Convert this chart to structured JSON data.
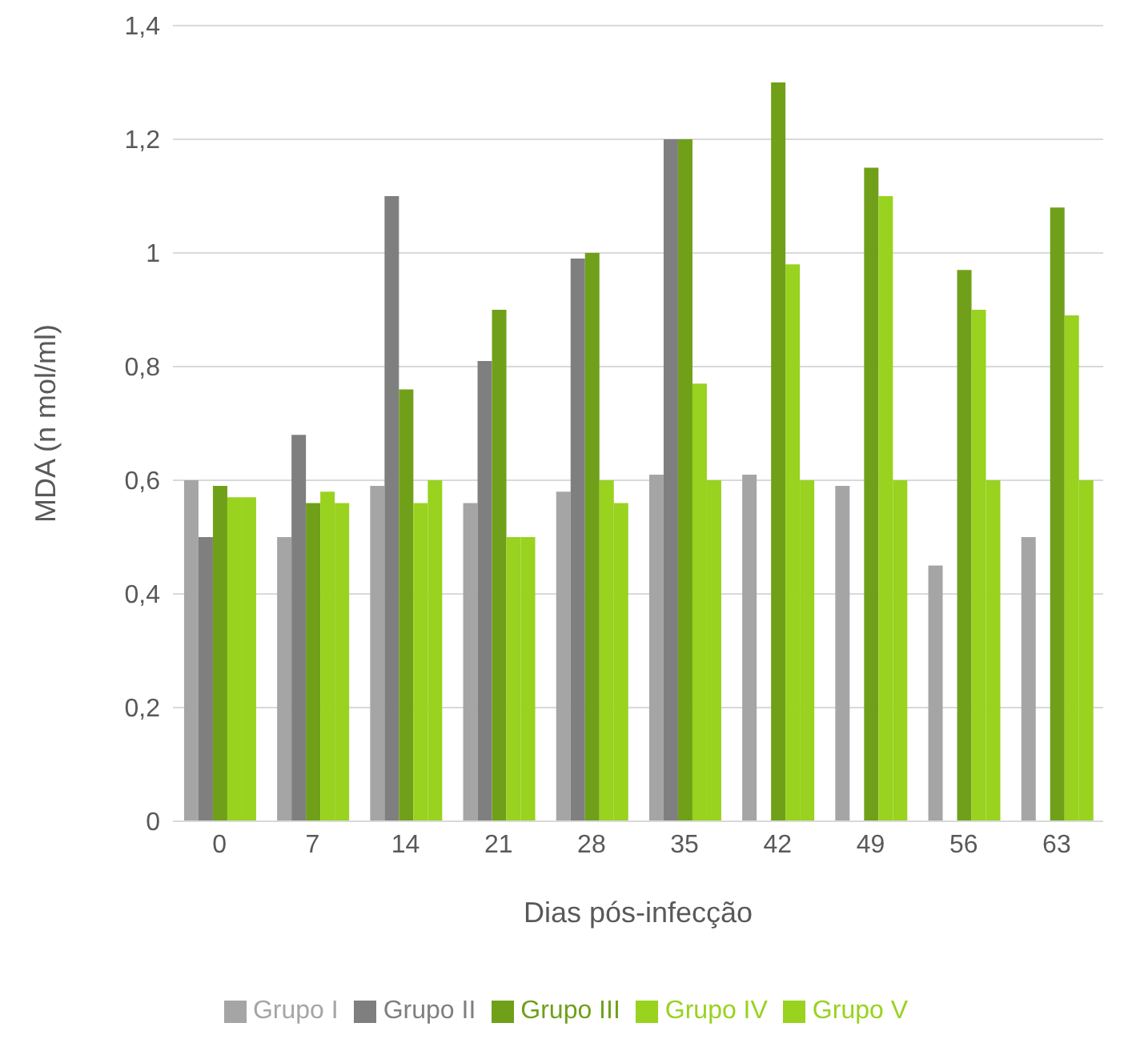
{
  "chart_data": {
    "type": "bar",
    "xlabel": "Dias pós-infecção",
    "ylabel": "MDA (n mol/ml)",
    "categories": [
      "0",
      "7",
      "14",
      "21",
      "28",
      "35",
      "42",
      "49",
      "56",
      "63"
    ],
    "series": [
      {
        "name": "Grupo I",
        "color": "#a5a5a5",
        "values": [
          0.6,
          0.5,
          0.59,
          0.56,
          0.58,
          0.61,
          0.61,
          0.59,
          0.45,
          0.5
        ]
      },
      {
        "name": "Grupo II",
        "color": "#7f7f7f",
        "values": [
          0.5,
          0.68,
          1.1,
          0.81,
          0.99,
          1.2,
          null,
          null,
          null,
          null
        ]
      },
      {
        "name": "Grupo III",
        "color": "#70a019",
        "values": [
          0.59,
          0.56,
          0.76,
          0.9,
          1.0,
          1.2,
          1.3,
          1.15,
          0.97,
          1.08
        ]
      },
      {
        "name": "Grupo IV",
        "color": "#99d21f",
        "values": [
          0.57,
          0.58,
          0.56,
          0.5,
          0.6,
          0.77,
          0.98,
          1.1,
          0.9,
          0.89
        ]
      },
      {
        "name": "Grupo V",
        "color": "#99d21f",
        "values": [
          0.57,
          0.56,
          0.6,
          0.5,
          0.56,
          0.6,
          0.6,
          0.6,
          0.6,
          0.6
        ]
      }
    ],
    "ylim": [
      0,
      1.4
    ],
    "yticks": [
      0,
      {
        "value": 0.2,
        "label": "0,2"
      },
      {
        "value": 0.4,
        "label": "0,4"
      },
      {
        "value": 0.6,
        "label": "0,6"
      },
      {
        "value": 0.8,
        "label": "0,8"
      },
      1,
      {
        "value": 1.2,
        "label": "1,2"
      },
      {
        "value": 1.4,
        "label": "1,4"
      }
    ],
    "grid": "y",
    "legend": "bottom"
  }
}
